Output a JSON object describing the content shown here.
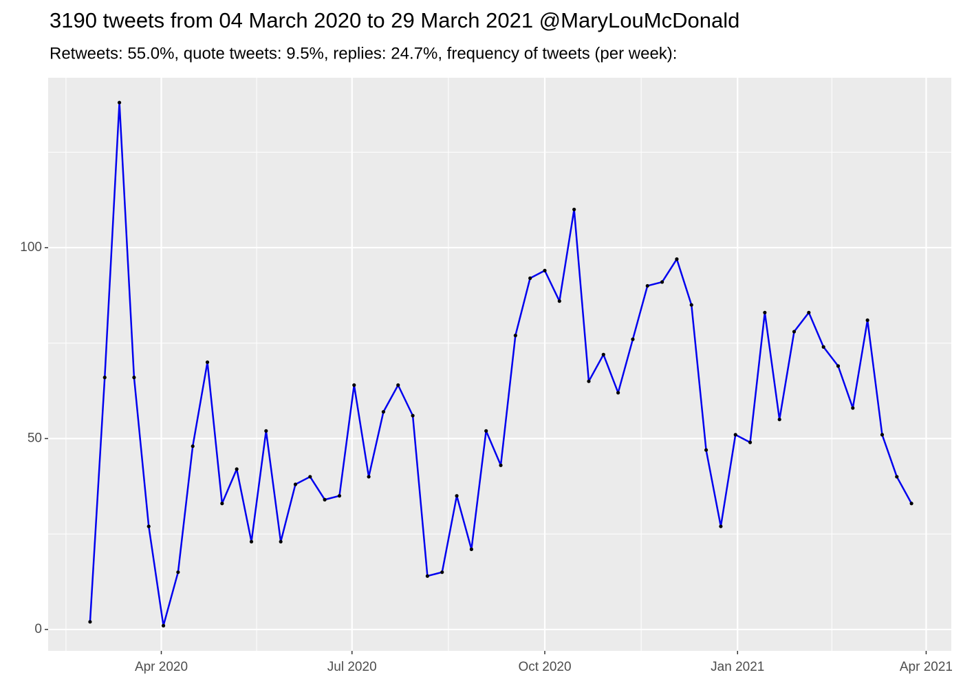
{
  "chart_data": {
    "type": "line",
    "title": "3190 tweets from 04 March 2020 to 29 March 2021 @MaryLouMcDonald",
    "subtitle": "Retweets: 55.0%, quote tweets: 9.5%, replies: 24.7%, frequency of tweets (per week):",
    "x": [
      "2020-02-27",
      "2020-03-05",
      "2020-03-12",
      "2020-03-19",
      "2020-03-26",
      "2020-04-02",
      "2020-04-09",
      "2020-04-16",
      "2020-04-23",
      "2020-04-30",
      "2020-05-07",
      "2020-05-14",
      "2020-05-21",
      "2020-05-28",
      "2020-06-04",
      "2020-06-11",
      "2020-06-18",
      "2020-06-25",
      "2020-07-02",
      "2020-07-09",
      "2020-07-16",
      "2020-07-23",
      "2020-07-30",
      "2020-08-06",
      "2020-08-13",
      "2020-08-20",
      "2020-08-27",
      "2020-09-03",
      "2020-09-10",
      "2020-09-17",
      "2020-09-24",
      "2020-10-01",
      "2020-10-08",
      "2020-10-15",
      "2020-10-22",
      "2020-10-29",
      "2020-11-05",
      "2020-11-12",
      "2020-11-19",
      "2020-11-26",
      "2020-12-03",
      "2020-12-10",
      "2020-12-17",
      "2020-12-24",
      "2020-12-31",
      "2021-01-07",
      "2021-01-14",
      "2021-01-21",
      "2021-01-28",
      "2021-02-04",
      "2021-02-11",
      "2021-02-18",
      "2021-02-25",
      "2021-03-04",
      "2021-03-11",
      "2021-03-18",
      "2021-03-25"
    ],
    "series": [
      {
        "color": "#0000ee",
        "marker_color": "#000000",
        "values": [
          2,
          66,
          138,
          66,
          27,
          1,
          15,
          48,
          70,
          33,
          42,
          23,
          52,
          23,
          38,
          40,
          34,
          35,
          64,
          40,
          57,
          64,
          56,
          14,
          15,
          35,
          21,
          52,
          43,
          77,
          92,
          94,
          86,
          110,
          65,
          72,
          62,
          76,
          90,
          91,
          97,
          85,
          47,
          27,
          51,
          49,
          83,
          55,
          78,
          83,
          74,
          69,
          58,
          81,
          51,
          40,
          33
        ]
      }
    ],
    "xlim": [
      "2020-02-07",
      "2021-04-13"
    ],
    "xticks": [
      {
        "value": "2020-04-01",
        "label": "Apr 2020"
      },
      {
        "value": "2020-07-01",
        "label": "Jul 2020"
      },
      {
        "value": "2020-10-01",
        "label": "Oct 2020"
      },
      {
        "value": "2021-01-01",
        "label": "Jan 2021"
      },
      {
        "value": "2021-04-01",
        "label": "Apr 2021"
      }
    ],
    "ylim": [
      -5.6,
      144.5
    ],
    "yticks": [
      0,
      50,
      100
    ],
    "grid": true
  }
}
